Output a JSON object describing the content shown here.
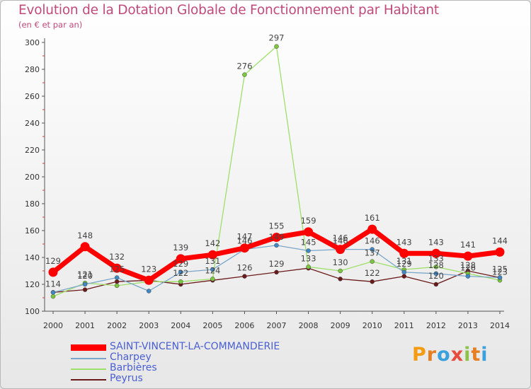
{
  "title": "Evolution de la Dotation Globale de Fonctionnement par Habitant",
  "subtitle": "(en € et par an)",
  "brand": {
    "letters": [
      "P",
      "r",
      "o",
      "x",
      "i",
      "t",
      "i"
    ],
    "colors": [
      "#f39c12",
      "#e67e22",
      "#3aa0de",
      "#e74c3c",
      "#8bc34a",
      "#e67e22",
      "#3aa0de"
    ]
  },
  "chart_data": {
    "type": "line",
    "title": "Evolution de la Dotation Globale de Fonctionnement par Habitant",
    "subtitle": "(en € et par an)",
    "xlabel": "",
    "ylabel": "",
    "ylim": [
      100,
      300
    ],
    "yticks": [
      100,
      120,
      140,
      160,
      180,
      200,
      220,
      240,
      260,
      280,
      300
    ],
    "categories": [
      "2000",
      "2001",
      "2002",
      "2003",
      "2004",
      "2005",
      "2006",
      "2007",
      "2008",
      "2009",
      "2010",
      "2011",
      "2012",
      "2013",
      "2014"
    ],
    "grid": false,
    "legend_position": "bottom-left",
    "series": [
      {
        "name": "Peyrus",
        "color": "#6b1a1a",
        "marker": "#6b1a1a",
        "values": [
          114,
          116,
          122,
          123,
          120,
          123,
          126,
          129,
          132,
          124,
          122,
          126,
          120,
          130,
          125
        ],
        "labels_shown": [
          true,
          false,
          false,
          false,
          false,
          false,
          true,
          true,
          false,
          false,
          true,
          false,
          true,
          false,
          false
        ]
      },
      {
        "name": "Barbières",
        "color": "#9ee06a",
        "marker": "#7bc63e",
        "values": [
          111,
          121,
          119,
          122,
          122,
          124,
          276,
          297,
          133,
          130,
          137,
          131,
          133,
          128,
          123
        ],
        "labels_shown": [
          false,
          true,
          false,
          false,
          true,
          true,
          true,
          true,
          true,
          true,
          true,
          true,
          true,
          true,
          true
        ]
      },
      {
        "name": "Charpey",
        "color": "#7ba6c9",
        "marker": "#3f88c5",
        "values": [
          114,
          120,
          125,
          115,
          129,
          131,
          146,
          149,
          145,
          146,
          146,
          129,
          128,
          126,
          125
        ],
        "labels_shown": [
          false,
          true,
          true,
          false,
          true,
          true,
          true,
          true,
          true,
          true,
          true,
          true,
          true,
          true,
          true
        ]
      },
      {
        "name": "SAINT-VINCENT-LA-COMMANDERIE",
        "color": "#ff0000",
        "marker": "#ff0000",
        "values": [
          129,
          148,
          132,
          123,
          139,
          142,
          147,
          155,
          159,
          146,
          161,
          143,
          143,
          141,
          144
        ],
        "labels_shown": [
          true,
          true,
          true,
          true,
          true,
          true,
          true,
          true,
          true,
          true,
          true,
          true,
          true,
          true,
          true
        ]
      }
    ]
  },
  "legend": [
    {
      "name": "SAINT-VINCENT-LA-COMMANDERIE",
      "color": "#ff0000",
      "thick": true
    },
    {
      "name": "Charpey",
      "color": "#7ba6c9",
      "thick": false
    },
    {
      "name": "Barbières",
      "color": "#9ee06a",
      "thick": false
    },
    {
      "name": "Peyrus",
      "color": "#6b1a1a",
      "thick": false
    }
  ]
}
